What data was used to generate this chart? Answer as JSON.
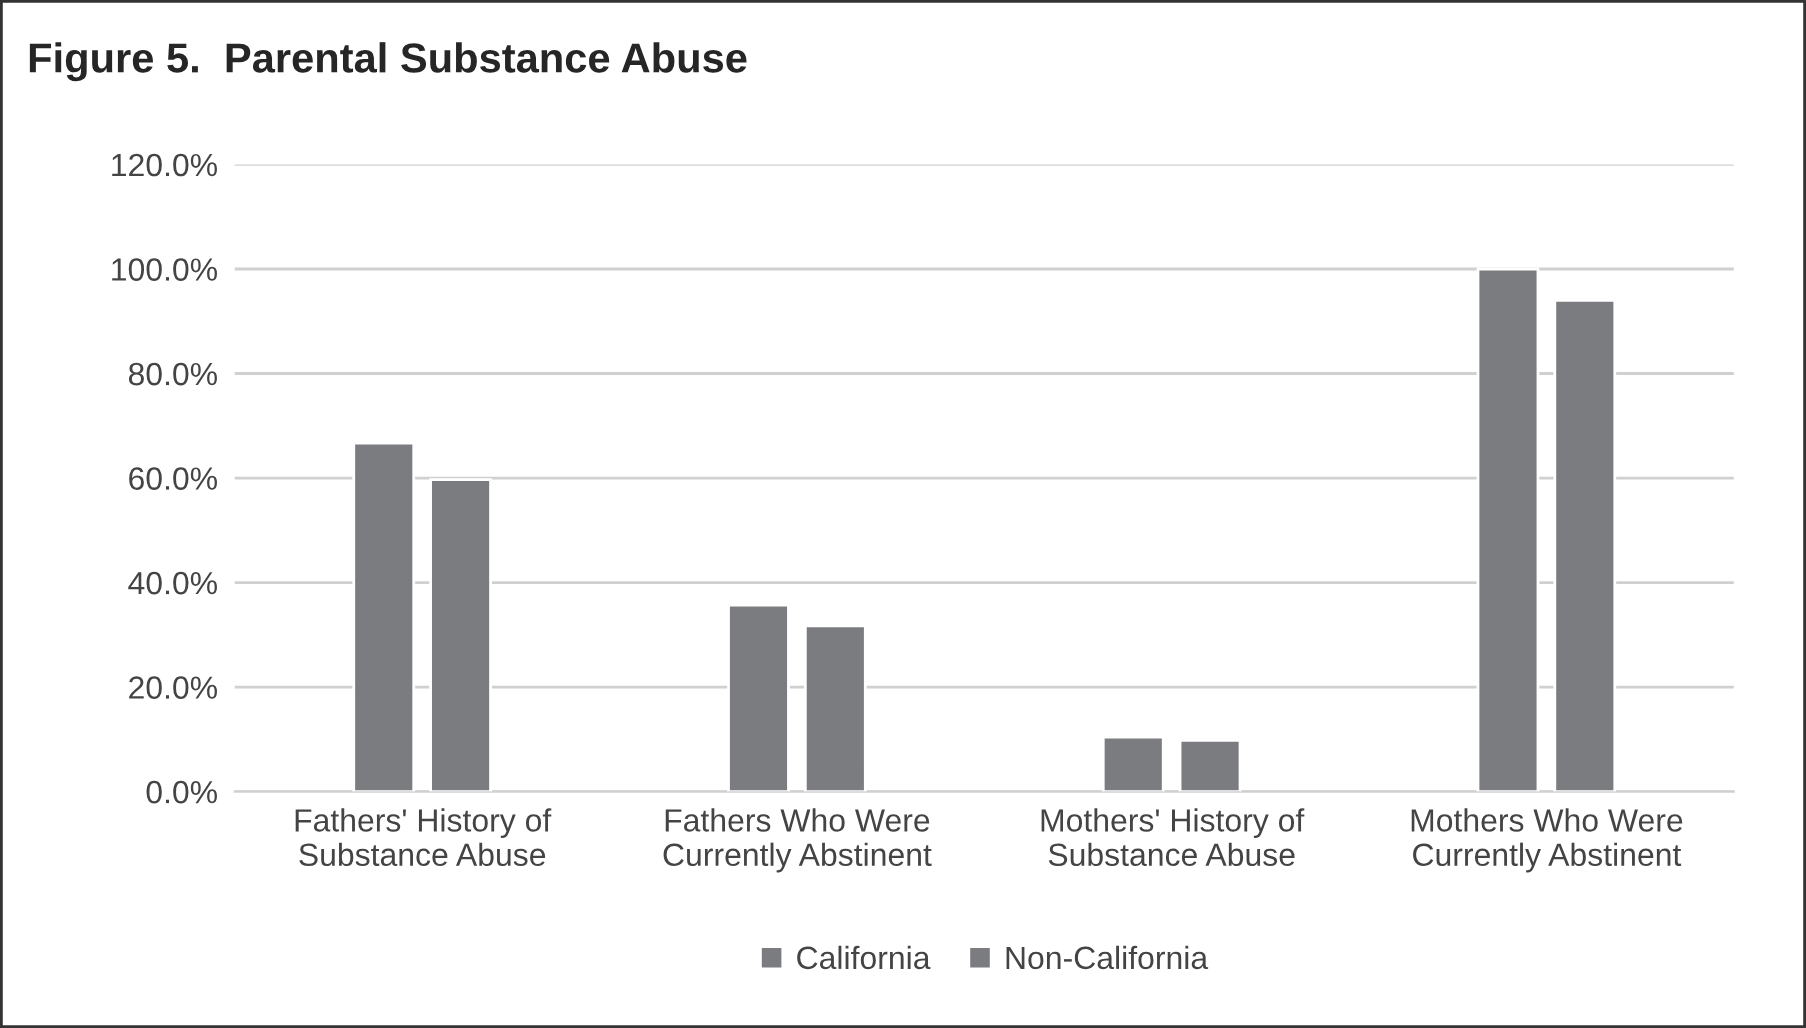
{
  "chart_data": {
    "type": "bar",
    "title": "Figure 5.  Parental Substance Abuse",
    "categories": [
      "Fathers' History of\nSubstance Abuse",
      "Fathers Who Were\nCurrently Abstinent",
      "Mothers' History of\nSubstance Abuse",
      "Mothers Who Were\nCurrently Abstinent"
    ],
    "series": [
      {
        "name": "California",
        "color": "#7b7c80",
        "values": [
          66.7,
          35.7,
          10.4,
          100
        ]
      },
      {
        "name": "Non-California",
        "color": "#7b7c80",
        "values": [
          59.7,
          31.7,
          9.8,
          94.0
        ]
      }
    ],
    "ylim": [
      0,
      120
    ],
    "yticks": [
      {
        "value": 0,
        "label": "0.0%"
      },
      {
        "value": 20,
        "label": "20.0%"
      },
      {
        "value": 40,
        "label": "40.0%"
      },
      {
        "value": 60,
        "label": "60.0%"
      },
      {
        "value": 80,
        "label": "80.0%"
      },
      {
        "value": 100,
        "label": "100.0%"
      },
      {
        "value": 120,
        "label": "120.0%"
      }
    ],
    "grid": "y",
    "legend": "bottom"
  }
}
